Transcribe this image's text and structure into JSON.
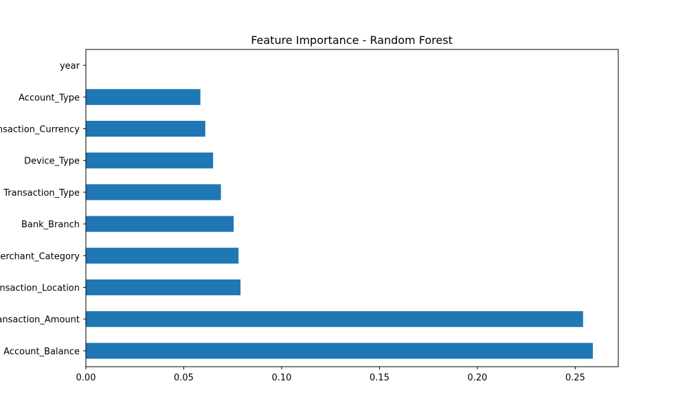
{
  "chart_data": {
    "type": "bar",
    "orientation": "horizontal",
    "title": "Feature Importance - Random Forest",
    "xlabel": "",
    "ylabel": "",
    "categories": [
      "Account_Balance",
      "Transaction_Amount",
      "Transaction_Location",
      "Merchant_Category",
      "Bank_Branch",
      "Transaction_Type",
      "Device_Type",
      "Transaction_Currency",
      "Account_Type",
      "year"
    ],
    "values": [
      0.259,
      0.254,
      0.079,
      0.078,
      0.0755,
      0.069,
      0.065,
      0.061,
      0.0585,
      0.0
    ],
    "xlim": [
      0.0,
      0.272
    ],
    "xticks": [
      0.0,
      0.05,
      0.1,
      0.15,
      0.2,
      0.25
    ],
    "xtick_labels": [
      "0.00",
      "0.05",
      "0.10",
      "0.15",
      "0.20",
      "0.25"
    ],
    "grid": false,
    "legend": "none",
    "bar_color": "#1f77b4"
  }
}
